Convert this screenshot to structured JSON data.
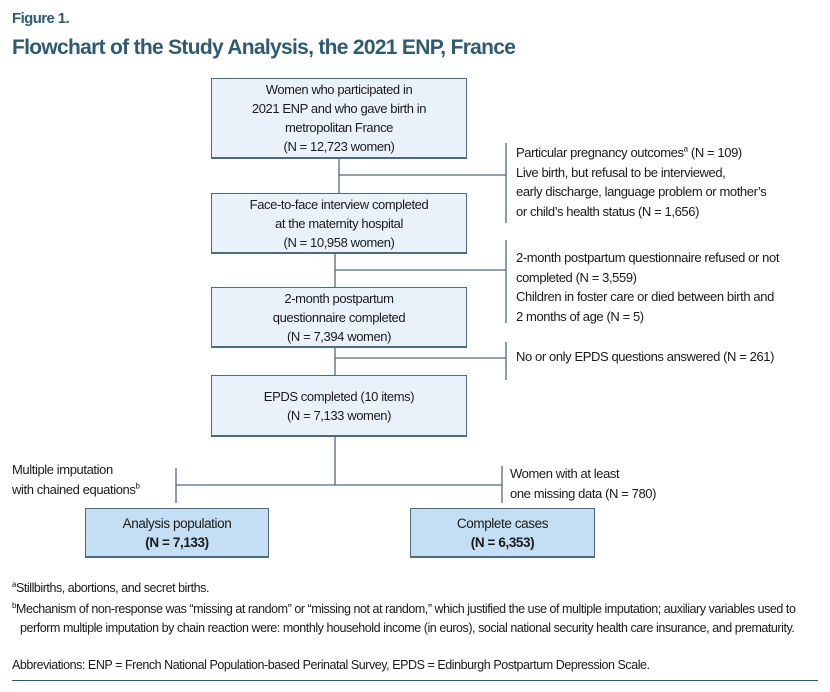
{
  "figure_label": "Figure 1.",
  "title": "Flowchart of the Study Analysis, the 2021 ENP, France",
  "boxes": [
    {
      "lines": [
        "Women who participated in",
        "2021 ENP and who gave birth in",
        "metropolitan France",
        "(N = 12,723 women)"
      ]
    },
    {
      "lines": [
        "Face-to-face interview completed",
        "at the maternity hospital",
        "(N = 10,958 women)"
      ]
    },
    {
      "lines": [
        "2-month postpartum",
        "questionnaire completed",
        "(N = 7,394 women)"
      ]
    },
    {
      "lines": [
        "EPDS completed (10 items)",
        "(N = 7,133 women)"
      ]
    }
  ],
  "exclusions": [
    {
      "lines": [
        "Particular pregnancy outcomes",
        "Live birth, but refusal to be interviewed,",
        "early discharge, language problem or mother’s",
        "or child’s health status (N = 1,656)"
      ],
      "first_sup": "a",
      "first_suffix": " (N = 109)"
    },
    {
      "lines": [
        "2-month postpartum questionnaire refused or not",
        "completed (N = 3,559)",
        "Children in foster care or died between birth and",
        "2 months of age (N = 5)"
      ]
    },
    {
      "lines": [
        "No or only EPDS questions answered (N = 261)"
      ]
    }
  ],
  "branches": {
    "left_note": {
      "lines": [
        "Multiple imputation",
        "with chained equations"
      ],
      "sup": "b"
    },
    "right_note": {
      "lines": [
        "Women with at least",
        "one missing data (N = 780)"
      ]
    },
    "left_box": {
      "label": "Analysis population",
      "n": "(N = 7,133)"
    },
    "right_box": {
      "label": "Complete cases",
      "n": "(N = 6,353)"
    }
  },
  "footnotes": {
    "a": {
      "mark": "a",
      "text": "Stillbirths, abortions, and secret births."
    },
    "b": {
      "mark": "b",
      "text": "Mechanism of non-response was “missing at random” or “missing not at random,” which justified the use of multiple imputation; auxiliary variables used to perform multiple imputation by chain reaction were: monthly household income (in euros), social national security health care insurance, and prematurity."
    },
    "abbreviations": "Abbreviations: ENP = French National Population-based Perinatal Survey, EPDS = Edinburgh Postpartum Depression Scale."
  },
  "colors": {
    "title": "#2f5b70",
    "box_fill": "#e9f2fb",
    "final_box_fill": "#c4def3",
    "line": "#4d6a7e"
  }
}
